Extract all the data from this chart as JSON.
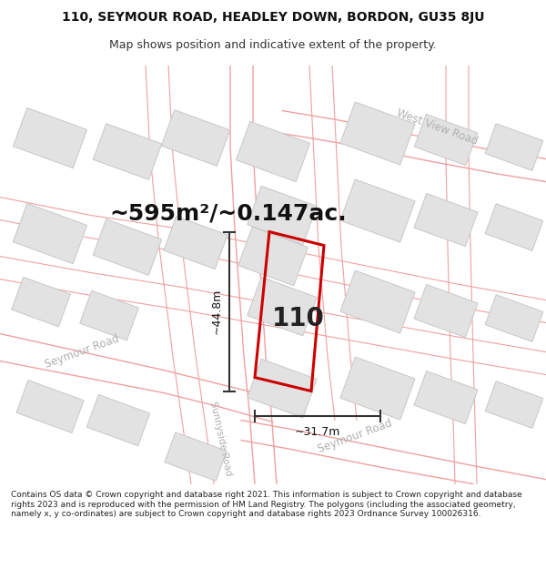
{
  "title_line1": "110, SEYMOUR ROAD, HEADLEY DOWN, BORDON, GU35 8JU",
  "title_line2": "Map shows position and indicative extent of the property.",
  "area_text": "~595m²/~0.147ac.",
  "number_label": "110",
  "dim_height": "~44.8m",
  "dim_width": "~31.7m",
  "footer_text": "Contains OS data © Crown copyright and database right 2021. This information is subject to Crown copyright and database rights 2023 and is reproduced with the permission of HM Land Registry. The polygons (including the associated geometry, namely x, y co-ordinates) are subject to Crown copyright and database rights 2023 Ordnance Survey 100026316.",
  "map_bg": "#ffffff",
  "building_fill": "#e2e2e2",
  "building_edge": "#c8c8c8",
  "road_line_color": "#f0a0a0",
  "plot_edge": "#cc0000",
  "dim_line_color": "#333333",
  "road_label_color": "#b0b0b0",
  "title_fontsize": 10,
  "subtitle_fontsize": 9,
  "area_fontsize": 18,
  "number_fontsize": 20,
  "dim_fontsize": 9,
  "road_label_fontsize": 8.5
}
